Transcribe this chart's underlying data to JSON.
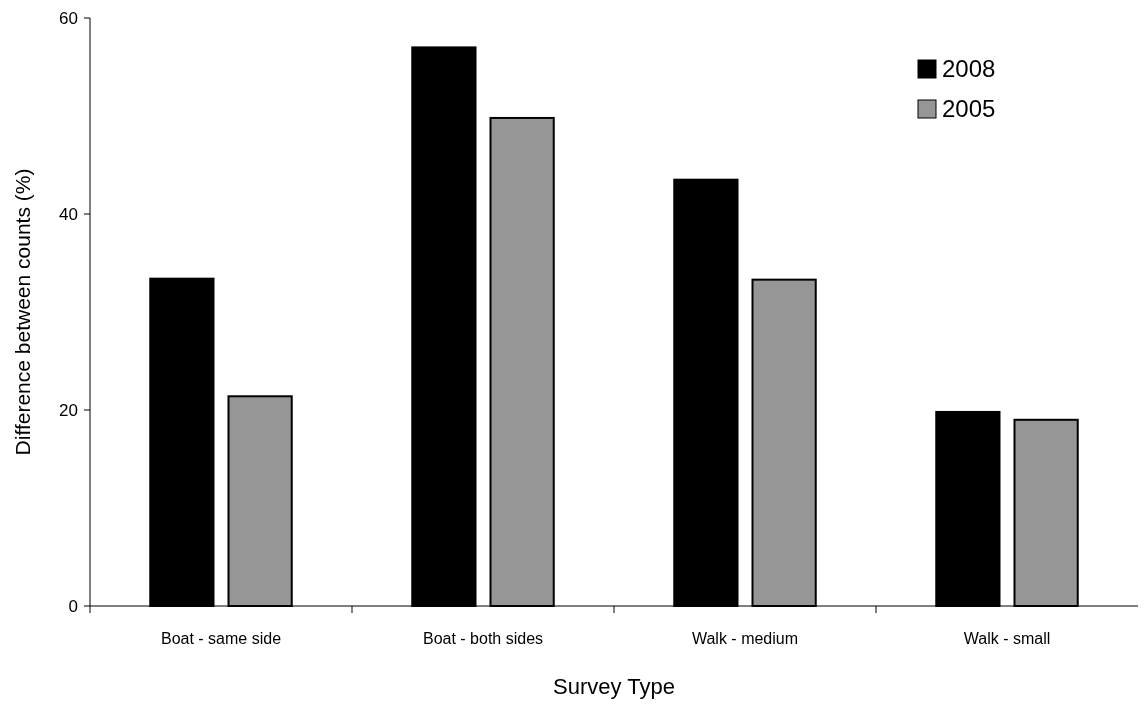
{
  "chart_data": {
    "type": "bar",
    "xlabel": "Survey Type",
    "ylabel": "Difference between counts (%)",
    "categories": [
      "Boat - same side",
      "Boat - both sides",
      "Walk - medium",
      "Walk - small"
    ],
    "series": [
      {
        "name": "2008",
        "color": "#000000",
        "values": [
          33.4,
          57.0,
          43.5,
          19.8
        ]
      },
      {
        "name": "2005",
        "color": "#969696",
        "values": [
          21.4,
          49.8,
          33.3,
          19.0
        ]
      }
    ],
    "ylim": [
      0,
      60
    ],
    "yticks": [
      0,
      20,
      40,
      60
    ],
    "legend": "top right"
  }
}
